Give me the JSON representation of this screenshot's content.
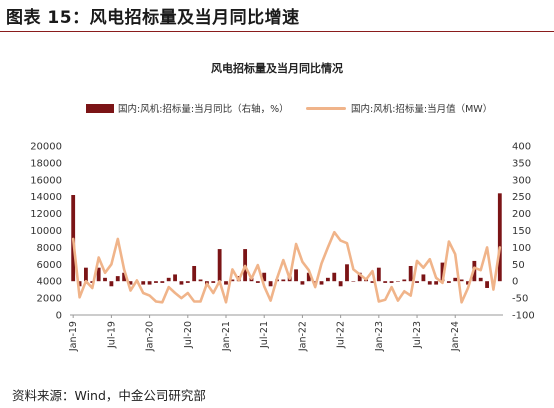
{
  "figure": {
    "heading": "图表 15：风电招标量及当月同比增速",
    "source": "资料来源：Wind，中金公司研究部"
  },
  "chart_data": {
    "type": "bar",
    "title": "风电招标量及当月同比情况",
    "legend_position": "top",
    "grid": false,
    "x_ticks": [
      "Jan-19",
      "Jul-19",
      "Jan-20",
      "Jul-20",
      "Jan-21",
      "Jul-21",
      "Jan-22",
      "Jul-22",
      "Jan-23",
      "Jul-23",
      "Jan-24"
    ],
    "x_months": [
      "2019-01",
      "2019-02",
      "2019-03",
      "2019-04",
      "2019-05",
      "2019-06",
      "2019-07",
      "2019-08",
      "2019-09",
      "2019-10",
      "2019-11",
      "2019-12",
      "2020-01",
      "2020-02",
      "2020-03",
      "2020-04",
      "2020-05",
      "2020-06",
      "2020-07",
      "2020-08",
      "2020-09",
      "2020-10",
      "2020-11",
      "2020-12",
      "2021-01",
      "2021-02",
      "2021-03",
      "2021-04",
      "2021-05",
      "2021-06",
      "2021-07",
      "2021-08",
      "2021-09",
      "2021-10",
      "2021-11",
      "2021-12",
      "2022-01",
      "2022-02",
      "2022-03",
      "2022-04",
      "2022-05",
      "2022-06",
      "2022-07",
      "2022-08",
      "2022-09",
      "2022-10",
      "2022-11",
      "2022-12",
      "2023-01",
      "2023-02",
      "2023-03",
      "2023-04",
      "2023-05",
      "2023-06",
      "2023-07",
      "2023-08",
      "2023-09",
      "2023-10",
      "2023-11",
      "2023-12",
      "2024-01",
      "2024-02",
      "2024-03",
      "2024-04",
      "2024-05",
      "2024-06",
      "2024-07",
      "2024-08"
    ],
    "y_left": {
      "ticks": [
        "0",
        "2000",
        "4000",
        "6000",
        "8000",
        "10000",
        "12000",
        "14000",
        "16000",
        "18000",
        "20000"
      ],
      "range": [
        0,
        20000
      ]
    },
    "y_right": {
      "ticks": [
        "-100",
        "-50",
        "0",
        "50",
        "100",
        "150",
        "200",
        "250",
        "300",
        "350",
        "400"
      ],
      "range": [
        -100,
        400
      ]
    },
    "series": [
      {
        "name": "国内:风机:招标量:当月同比（右轴，%）",
        "type": "bar",
        "axis": "right",
        "color": "#7b1416",
        "values": [
          255,
          -15,
          40,
          -5,
          40,
          10,
          -15,
          15,
          25,
          -10,
          -5,
          -10,
          -10,
          -5,
          -5,
          10,
          20,
          -10,
          -5,
          45,
          5,
          -10,
          -5,
          95,
          -10,
          5,
          15,
          95,
          10,
          -5,
          25,
          -15,
          5,
          5,
          15,
          35,
          -10,
          25,
          -10,
          -10,
          10,
          25,
          -15,
          50,
          0,
          25,
          5,
          -5,
          40,
          -5,
          -5,
          0,
          5,
          45,
          -5,
          20,
          -10,
          -10,
          55,
          -5,
          10,
          5,
          -10,
          60,
          10,
          -20,
          -5,
          260
        ]
      },
      {
        "name": "国内:风机:招标量:当月值（MW）",
        "type": "line",
        "axis": "left",
        "color": "#f0b48a",
        "values": [
          9000,
          2100,
          4000,
          3200,
          6800,
          5000,
          6000,
          9000,
          5400,
          2900,
          4100,
          2600,
          2300,
          1600,
          1500,
          3300,
          2600,
          2000,
          2600,
          1600,
          1600,
          3700,
          2600,
          4000,
          1500,
          5400,
          4100,
          5800,
          4300,
          5900,
          3400,
          1700,
          4300,
          6500,
          4300,
          8400,
          6300,
          5300,
          3300,
          6100,
          8000,
          9800,
          8800,
          8500,
          5400,
          4800,
          4200,
          5200,
          1600,
          1800,
          3300,
          1700,
          2800,
          2300,
          6400,
          5600,
          6600,
          4400,
          3800,
          8700,
          7200,
          1500,
          3200,
          5600,
          5300,
          8000,
          3000,
          8000
        ]
      }
    ]
  }
}
